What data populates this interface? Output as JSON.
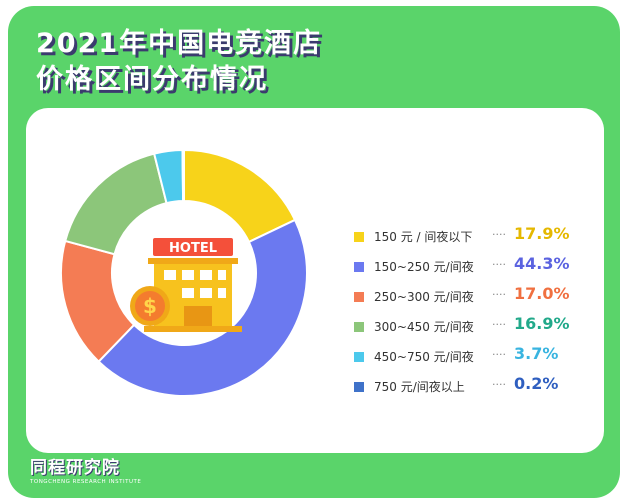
{
  "title": {
    "line1": "2021年中国电竞酒店",
    "line2": "价格区间分布情况"
  },
  "brand": {
    "name": "同程研究院",
    "sub": "TONGCHENG RESEARCH INSTITUTE"
  },
  "icon": {
    "sign_text": "HOTEL",
    "semantic": "hotel-building-icon",
    "coin_symbol": "$"
  },
  "colors": {
    "background": "#5ad46a",
    "card": "#ffffff",
    "title_shadow": "#3b3b6e"
  },
  "chart_data": {
    "type": "pie",
    "style": "donut",
    "categories": [
      "150 元 / 间夜以下",
      "150~250 元/间夜",
      "250~300 元/间夜",
      "300~450 元/间夜",
      "450~750 元/间夜",
      "750 元/间夜以上"
    ],
    "values": [
      17.9,
      44.3,
      17.0,
      16.9,
      3.7,
      0.2
    ],
    "labels": [
      "17.9%",
      "44.3%",
      "17.0%",
      "16.9%",
      "3.7%",
      "0.2%"
    ],
    "colors": [
      "#f7d31a",
      "#6b79f0",
      "#f47c54",
      "#8cc67a",
      "#4cc9ec",
      "#3f72c9"
    ],
    "value_colors": [
      "#e5b800",
      "#5b63e0",
      "#f07040",
      "#22a98a",
      "#39b4e0",
      "#2f5fc0"
    ],
    "legend_dots": "····",
    "legend_position": "right"
  }
}
